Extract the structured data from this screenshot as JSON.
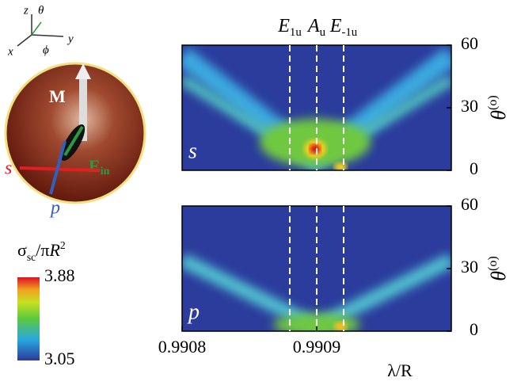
{
  "chart_data": [
    {
      "type": "heatmap",
      "panel_label": "s",
      "xlim": [
        0.9908,
        0.991
      ],
      "ylim": [
        0,
        60
      ],
      "yticks": [
        0,
        30,
        60
      ],
      "ylabel": {
        "main": "θ",
        "sup": "(o)"
      },
      "markers": [
        {
          "label": {
            "main": "E",
            "sub": "1u"
          },
          "x": 0.99088
        },
        {
          "label": {
            "main": "A",
            "sub": "u"
          },
          "x": 0.9909
        },
        {
          "label": {
            "main": "E",
            "sub": "-1u"
          },
          "x": 0.99092
        }
      ]
    },
    {
      "type": "heatmap",
      "panel_label": "p",
      "xlim": [
        0.9908,
        0.991
      ],
      "ylim": [
        0,
        60
      ],
      "yticks": [
        0,
        30,
        60
      ],
      "xticks": [
        0.9908,
        0.9909
      ],
      "xlabel": "λ/R",
      "ylabel": {
        "main": "θ",
        "sup": "(o)"
      }
    }
  ],
  "colorbar": {
    "label": {
      "a": "σ",
      "sub": "sc",
      "b": "/π",
      "c": "R",
      "sup": "2"
    },
    "lim": [
      3.05,
      3.88
    ],
    "ticks": [
      3.05,
      3.88
    ]
  },
  "illustration": {
    "axes": {
      "z": "z",
      "theta": "θ",
      "x": "x",
      "phi": "ϕ",
      "y": "y"
    },
    "M": "M",
    "E": "E",
    "E_sub": "in",
    "s": "s",
    "p": "p"
  }
}
